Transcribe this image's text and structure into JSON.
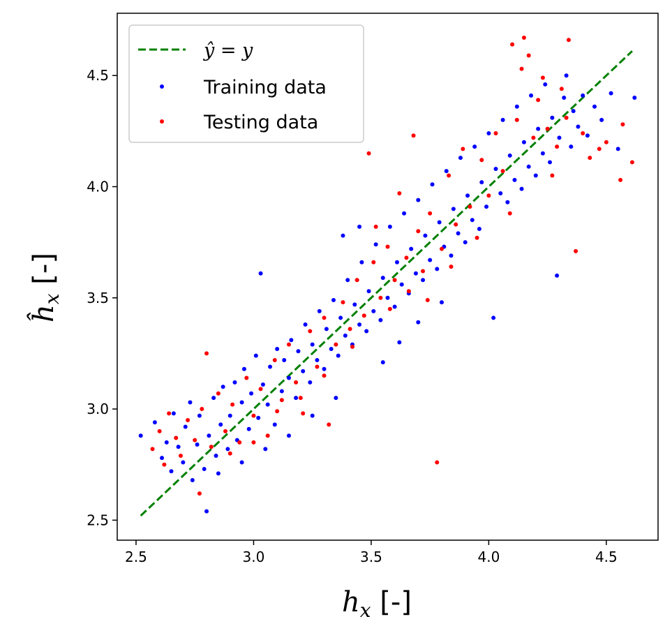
{
  "chart_data": {
    "type": "scatter",
    "title": "",
    "xlabel_main": "h",
    "xlabel_sub": "x",
    "xlabel_unit": " [-]",
    "ylabel_main": "ĥ",
    "ylabel_sub": "x",
    "ylabel_unit": " [-]",
    "xlim": [
      2.42,
      4.72
    ],
    "ylim": [
      2.41,
      4.78
    ],
    "xticks": [
      2.5,
      3.0,
      3.5,
      4.0,
      4.5
    ],
    "yticks": [
      2.5,
      3.0,
      3.5,
      4.0,
      4.5
    ],
    "xtick_labels": [
      "2.5",
      "3.0",
      "3.5",
      "4.0",
      "4.5"
    ],
    "ytick_labels": [
      "2.5",
      "3.0",
      "3.5",
      "4.0",
      "4.5"
    ],
    "grid": false,
    "legend_position": "top-left",
    "reference_line": {
      "label_math": "ŷ = y",
      "style": "dashed",
      "color": "#008000",
      "x": [
        2.52,
        4.61
      ],
      "y": [
        2.52,
        4.61
      ]
    },
    "series": [
      {
        "name": "Training data",
        "color": "#0000ff",
        "points": [
          [
            2.52,
            2.88
          ],
          [
            2.58,
            2.94
          ],
          [
            2.61,
            2.78
          ],
          [
            2.63,
            2.85
          ],
          [
            2.65,
            2.72
          ],
          [
            2.66,
            2.98
          ],
          [
            2.68,
            2.83
          ],
          [
            2.7,
            2.76
          ],
          [
            2.71,
            2.92
          ],
          [
            2.73,
            3.03
          ],
          [
            2.74,
            2.68
          ],
          [
            2.76,
            2.84
          ],
          [
            2.77,
            2.97
          ],
          [
            2.79,
            2.73
          ],
          [
            2.8,
            2.54
          ],
          [
            2.81,
            2.88
          ],
          [
            2.83,
            3.05
          ],
          [
            2.84,
            2.79
          ],
          [
            2.86,
            2.93
          ],
          [
            2.87,
            3.1
          ],
          [
            2.89,
            2.82
          ],
          [
            2.9,
            2.97
          ],
          [
            2.92,
            3.12
          ],
          [
            2.93,
            2.86
          ],
          [
            2.95,
            3.03
          ],
          [
            2.96,
            3.18
          ],
          [
            2.98,
            2.91
          ],
          [
            2.99,
            3.07
          ],
          [
            3.01,
            3.24
          ],
          [
            3.02,
            2.96
          ],
          [
            3.03,
            3.61
          ],
          [
            3.04,
            3.11
          ],
          [
            3.06,
            3.02
          ],
          [
            3.07,
            3.19
          ],
          [
            3.09,
            2.93
          ],
          [
            3.1,
            3.27
          ],
          [
            3.12,
            3.08
          ],
          [
            3.13,
            3.22
          ],
          [
            3.15,
            3.14
          ],
          [
            3.16,
            3.31
          ],
          [
            3.18,
            3.05
          ],
          [
            3.19,
            3.26
          ],
          [
            3.21,
            3.17
          ],
          [
            3.22,
            3.38
          ],
          [
            3.24,
            3.12
          ],
          [
            3.25,
            3.29
          ],
          [
            3.27,
            3.22
          ],
          [
            3.28,
            3.44
          ],
          [
            3.3,
            3.18
          ],
          [
            3.31,
            3.36
          ],
          [
            3.33,
            3.27
          ],
          [
            3.34,
            3.49
          ],
          [
            3.36,
            3.24
          ],
          [
            3.37,
            3.41
          ],
          [
            3.39,
            3.33
          ],
          [
            3.4,
            3.58
          ],
          [
            3.42,
            3.29
          ],
          [
            3.43,
            3.47
          ],
          [
            3.45,
            3.38
          ],
          [
            3.46,
            3.66
          ],
          [
            3.48,
            3.35
          ],
          [
            3.49,
            3.53
          ],
          [
            3.51,
            3.44
          ],
          [
            3.52,
            3.74
          ],
          [
            3.54,
            3.4
          ],
          [
            3.55,
            3.59
          ],
          [
            3.57,
            3.5
          ],
          [
            3.58,
            3.82
          ],
          [
            3.6,
            3.46
          ],
          [
            3.61,
            3.66
          ],
          [
            3.63,
            3.56
          ],
          [
            3.64,
            3.88
          ],
          [
            3.66,
            3.52
          ],
          [
            3.67,
            3.72
          ],
          [
            3.69,
            3.61
          ],
          [
            3.7,
            3.94
          ],
          [
            3.72,
            3.58
          ],
          [
            3.73,
            3.78
          ],
          [
            3.75,
            3.67
          ],
          [
            3.76,
            4.01
          ],
          [
            3.78,
            3.63
          ],
          [
            3.79,
            3.84
          ],
          [
            3.81,
            3.73
          ],
          [
            3.82,
            4.07
          ],
          [
            3.84,
            3.69
          ],
          [
            3.85,
            3.9
          ],
          [
            3.87,
            3.79
          ],
          [
            3.88,
            4.13
          ],
          [
            3.9,
            3.75
          ],
          [
            3.91,
            3.96
          ],
          [
            3.93,
            3.85
          ],
          [
            3.94,
            4.18
          ],
          [
            3.96,
            3.81
          ],
          [
            3.97,
            4.02
          ],
          [
            3.99,
            3.91
          ],
          [
            4.0,
            4.24
          ],
          [
            4.02,
            3.41
          ],
          [
            4.03,
            4.08
          ],
          [
            4.05,
            3.97
          ],
          [
            4.06,
            4.3
          ],
          [
            4.08,
            3.93
          ],
          [
            4.09,
            4.14
          ],
          [
            4.11,
            4.03
          ],
          [
            4.12,
            4.36
          ],
          [
            4.14,
            3.99
          ],
          [
            4.15,
            4.2
          ],
          [
            4.17,
            4.09
          ],
          [
            4.18,
            4.41
          ],
          [
            4.2,
            4.05
          ],
          [
            4.21,
            4.26
          ],
          [
            4.23,
            4.15
          ],
          [
            4.24,
            4.46
          ],
          [
            4.26,
            4.11
          ],
          [
            4.27,
            4.31
          ],
          [
            4.29,
            3.6
          ],
          [
            4.3,
            4.22
          ],
          [
            4.32,
            4.4
          ],
          [
            4.33,
            4.5
          ],
          [
            4.35,
            4.18
          ],
          [
            4.36,
            4.34
          ],
          [
            4.38,
            4.27
          ],
          [
            4.4,
            4.41
          ],
          [
            4.42,
            4.23
          ],
          [
            4.45,
            4.36
          ],
          [
            4.48,
            4.3
          ],
          [
            4.52,
            4.42
          ],
          [
            4.55,
            4.17
          ],
          [
            4.62,
            4.4
          ],
          [
            3.38,
            3.78
          ],
          [
            3.45,
            3.82
          ],
          [
            3.55,
            3.21
          ],
          [
            3.62,
            3.3
          ],
          [
            3.7,
            3.39
          ],
          [
            3.8,
            3.48
          ],
          [
            3.35,
            3.05
          ],
          [
            3.25,
            2.97
          ],
          [
            3.15,
            2.88
          ],
          [
            3.05,
            2.82
          ],
          [
            2.95,
            2.76
          ],
          [
            2.85,
            2.71
          ]
        ]
      },
      {
        "name": "Testing data",
        "color": "#ff0000",
        "points": [
          [
            2.57,
            2.82
          ],
          [
            2.6,
            2.9
          ],
          [
            2.62,
            2.75
          ],
          [
            2.64,
            2.98
          ],
          [
            2.67,
            2.87
          ],
          [
            2.69,
            2.79
          ],
          [
            2.72,
            2.95
          ],
          [
            2.75,
            2.86
          ],
          [
            2.77,
            2.62
          ],
          [
            2.78,
            3.0
          ],
          [
            2.8,
            3.25
          ],
          [
            2.82,
            2.83
          ],
          [
            2.85,
            3.07
          ],
          [
            2.88,
            2.9
          ],
          [
            2.91,
            3.02
          ],
          [
            2.94,
            2.85
          ],
          [
            2.97,
            3.14
          ],
          [
            3.0,
            2.97
          ],
          [
            3.03,
            3.09
          ],
          [
            3.06,
            2.88
          ],
          [
            3.09,
            3.22
          ],
          [
            3.12,
            3.04
          ],
          [
            3.15,
            3.29
          ],
          [
            3.18,
            3.12
          ],
          [
            3.21,
            2.98
          ],
          [
            3.24,
            3.35
          ],
          [
            3.27,
            3.19
          ],
          [
            3.3,
            3.41
          ],
          [
            3.32,
            2.93
          ],
          [
            3.35,
            3.29
          ],
          [
            3.38,
            3.48
          ],
          [
            3.41,
            3.36
          ],
          [
            3.44,
            3.58
          ],
          [
            3.47,
            3.42
          ],
          [
            3.49,
            4.15
          ],
          [
            3.51,
            3.66
          ],
          [
            3.54,
            3.5
          ],
          [
            3.57,
            3.73
          ],
          [
            3.6,
            3.58
          ],
          [
            3.62,
            3.97
          ],
          [
            3.65,
            3.68
          ],
          [
            3.68,
            4.23
          ],
          [
            3.7,
            3.8
          ],
          [
            3.72,
            3.62
          ],
          [
            3.75,
            3.88
          ],
          [
            3.78,
            2.76
          ],
          [
            3.8,
            3.72
          ],
          [
            3.83,
            4.05
          ],
          [
            3.86,
            3.83
          ],
          [
            3.89,
            4.17
          ],
          [
            3.92,
            3.91
          ],
          [
            3.95,
            3.77
          ],
          [
            3.97,
            4.12
          ],
          [
            4.0,
            3.96
          ],
          [
            4.03,
            4.24
          ],
          [
            4.06,
            4.07
          ],
          [
            4.09,
            3.88
          ],
          [
            4.1,
            4.64
          ],
          [
            4.12,
            4.3
          ],
          [
            4.14,
            4.53
          ],
          [
            4.15,
            4.67
          ],
          [
            4.17,
            4.59
          ],
          [
            4.19,
            4.22
          ],
          [
            4.21,
            4.39
          ],
          [
            4.23,
            4.49
          ],
          [
            4.25,
            4.26
          ],
          [
            4.27,
            4.05
          ],
          [
            4.29,
            4.18
          ],
          [
            4.31,
            4.44
          ],
          [
            4.33,
            4.31
          ],
          [
            4.34,
            4.66
          ],
          [
            4.37,
            3.71
          ],
          [
            4.4,
            4.24
          ],
          [
            4.43,
            4.13
          ],
          [
            4.47,
            4.17
          ],
          [
            4.5,
            4.2
          ],
          [
            4.56,
            4.03
          ],
          [
            4.57,
            4.28
          ],
          [
            4.61,
            4.11
          ],
          [
            3.52,
            3.82
          ],
          [
            3.58,
            3.45
          ],
          [
            3.66,
            3.53
          ],
          [
            3.74,
            3.49
          ],
          [
            3.84,
            3.64
          ],
          [
            3.42,
            3.28
          ],
          [
            3.3,
            3.15
          ],
          [
            3.2,
            3.05
          ],
          [
            3.1,
            2.99
          ],
          [
            3.0,
            2.85
          ],
          [
            2.9,
            2.8
          ]
        ]
      }
    ]
  }
}
